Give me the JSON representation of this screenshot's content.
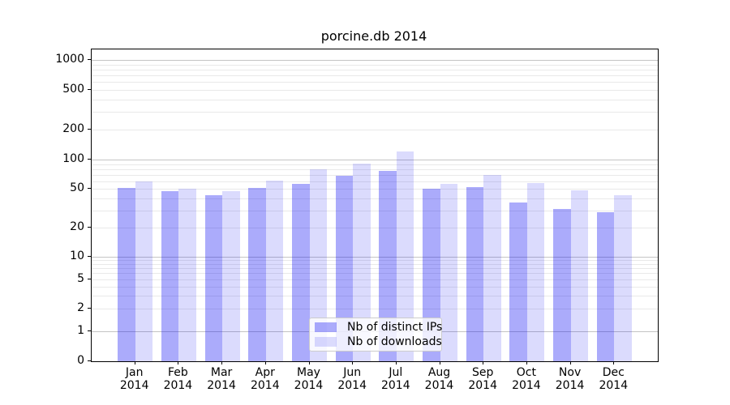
{
  "chart_data": {
    "type": "bar",
    "title": "porcine.db 2014",
    "categories": [
      "Jan 2014",
      "Feb 2014",
      "Mar 2014",
      "Apr 2014",
      "May 2014",
      "Jun 2014",
      "Jul 2014",
      "Aug 2014",
      "Sep 2014",
      "Oct 2014",
      "Nov 2014",
      "Dec 2014"
    ],
    "series": [
      {
        "name": "Nb of distinct IPs",
        "color": "rgba(8,8,242,0.34)",
        "values": [
          51,
          47,
          43,
          51,
          56,
          68,
          77,
          50,
          52,
          36,
          31,
          29
        ]
      },
      {
        "name": "Nb of downloads",
        "color": "rgba(8,8,242,0.145)",
        "values": [
          60,
          50,
          47,
          61,
          79,
          91,
          120,
          56,
          69,
          57,
          48,
          43
        ]
      }
    ],
    "y_axis": {
      "scale": "symlog",
      "tick_values": [
        0,
        1,
        2,
        5,
        10,
        20,
        50,
        100,
        200,
        500,
        1000
      ],
      "tick_labels": [
        "0",
        "1",
        "2",
        "5",
        "10",
        "20",
        "50",
        "100",
        "200",
        "500",
        "1000"
      ],
      "ylim": [
        0,
        1300
      ]
    },
    "x_axis": {
      "label": "",
      "tick_style": "month over year, two lines"
    },
    "legend": {
      "position": "bottom-center-inside"
    },
    "grid": {
      "horizontal_major_at": [
        1,
        10,
        100,
        1000
      ],
      "horizontal_minor": "2-9 per decade",
      "major_color": "#c4c4c4",
      "minor_color": "#e9e9e9"
    },
    "background": "#ffffff",
    "spine_color": "#000000"
  }
}
